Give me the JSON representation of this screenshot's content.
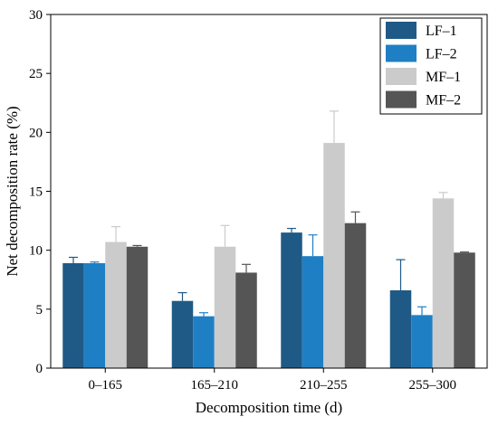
{
  "chart_data": {
    "type": "bar",
    "xlabel": "Decomposition time (d)",
    "ylabel": "Net decomposition rate (%)",
    "ylim": [
      0,
      30
    ],
    "yticks": [
      "0",
      "5",
      "10",
      "15",
      "20",
      "25",
      "30"
    ],
    "categories": [
      "0–165",
      "165–210",
      "210–255",
      "255–300"
    ],
    "legend_position": "top-right",
    "series": [
      {
        "name": "LF–1",
        "color": "#1f5a86",
        "values": [
          8.9,
          5.7,
          11.5,
          6.6
        ],
        "errors": [
          0.5,
          0.7,
          0.35,
          2.6
        ]
      },
      {
        "name": "LF–2",
        "color": "#1f7fc4",
        "values": [
          8.9,
          4.4,
          9.5,
          4.5
        ],
        "errors": [
          0.1,
          0.3,
          1.8,
          0.7
        ]
      },
      {
        "name": "MF–1",
        "color": "#cbcbcb",
        "values": [
          10.7,
          10.3,
          19.1,
          14.4
        ],
        "errors": [
          1.3,
          1.8,
          2.7,
          0.5
        ]
      },
      {
        "name": "MF–2",
        "color": "#555555",
        "values": [
          10.3,
          8.1,
          12.3,
          9.8
        ],
        "errors": [
          0.1,
          0.7,
          0.95,
          0.05
        ]
      }
    ]
  }
}
